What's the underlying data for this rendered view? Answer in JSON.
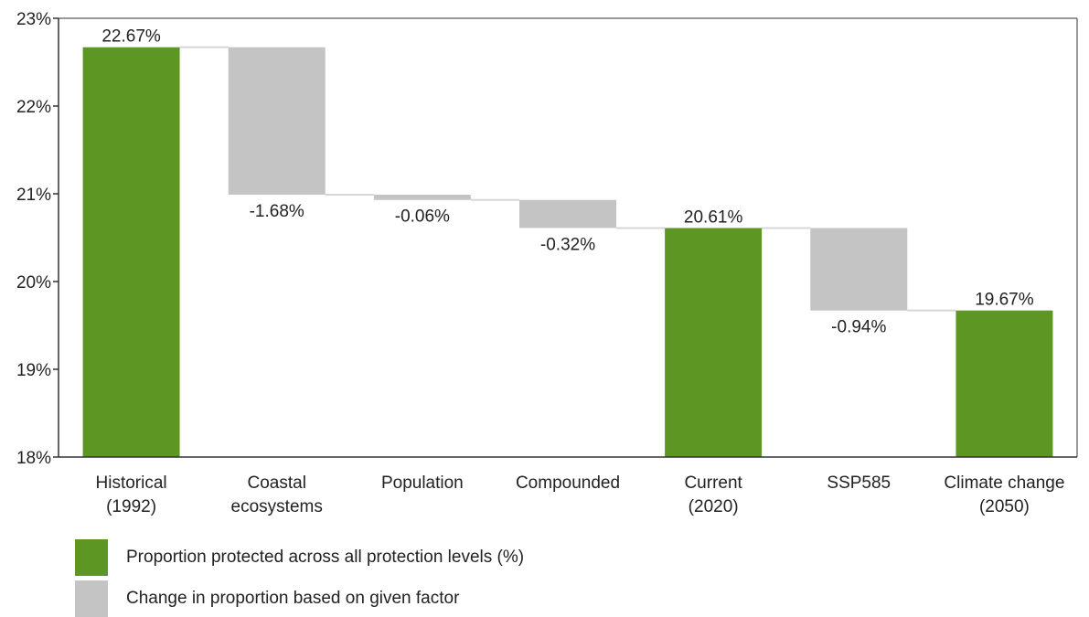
{
  "chart_data": {
    "type": "waterfall",
    "ylim": [
      18,
      23
    ],
    "y_ticks": [
      "18%",
      "19%",
      "20%",
      "21%",
      "22%",
      "23%"
    ],
    "y_tick_values": [
      18,
      19,
      20,
      21,
      22,
      23
    ],
    "grid": false,
    "legend_position": "bottom-left",
    "colors": {
      "total": "#5e9623",
      "change": "#c4c4c4",
      "connector": "#d6d6d6",
      "axis": "#333333"
    },
    "bars": [
      {
        "category": [
          "Historical",
          "(1992)"
        ],
        "kind": "total",
        "value": 22.67,
        "label": "22.67%"
      },
      {
        "category": [
          "Coastal",
          "ecosystems"
        ],
        "kind": "change",
        "value": -1.68,
        "label": "-1.68%"
      },
      {
        "category": [
          "Population"
        ],
        "kind": "change",
        "value": -0.06,
        "label": "-0.06%"
      },
      {
        "category": [
          "Compounded"
        ],
        "kind": "change",
        "value": -0.32,
        "label": "-0.32%"
      },
      {
        "category": [
          "Current",
          "(2020)"
        ],
        "kind": "total",
        "value": 20.61,
        "label": "20.61%"
      },
      {
        "category": [
          "SSP585"
        ],
        "kind": "change",
        "value": -0.94,
        "label": "-0.94%"
      },
      {
        "category": [
          "Climate change",
          "(2050)"
        ],
        "kind": "total",
        "value": 19.67,
        "label": "19.67%"
      }
    ],
    "legend": [
      {
        "label": "Proportion protected across all protection levels (%)",
        "color": "#5e9623"
      },
      {
        "label": "Change in proportion based on given factor",
        "color": "#c4c4c4"
      }
    ]
  }
}
